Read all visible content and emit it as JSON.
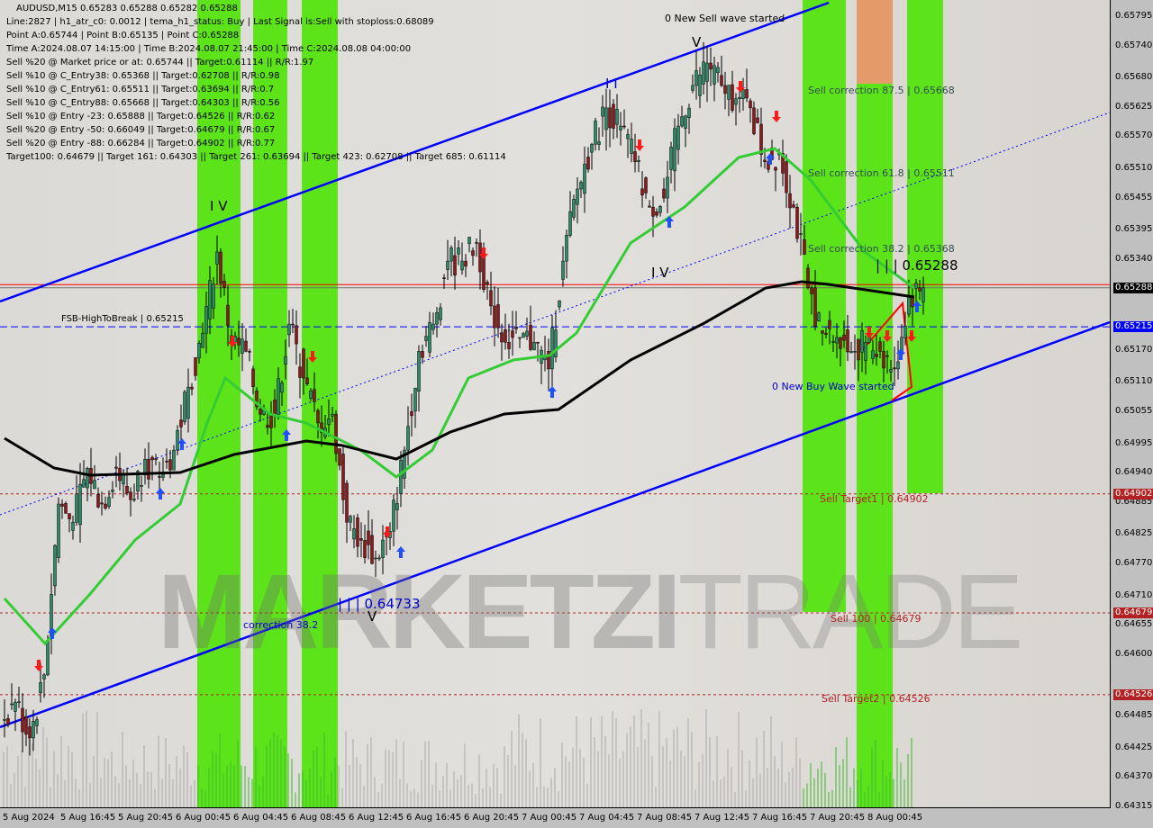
{
  "header": {
    "symbol_line": "AUDUSD,M15  0.65283 0.65288 0.65282 0.65288",
    "info_lines": [
      "Line:2827 | h1_atr_c0: 0.0012 | tema_h1_status: Buy | Last Signal is:Sell with stoploss:0.68089",
      "Point A:0.65744 | Point B:0.65135 | Point C:0.65288",
      "Time A:2024.08.07 14:15:00 | Time B:2024.08.07 21:45:00 | Time C:2024.08.08 04:00:00",
      "Sell %20 @ Market price or at: 0.65744 || Target:0.61114 || R/R:1.97",
      "Sell %10 @ C_Entry38: 0.65368 || Target:0.62708 || R/R:0.98",
      "Sell %10 @ C_Entry61: 0.65511 || Target:0.63694 || R/R:0.7",
      "Sell %10 @ C_Entry88: 0.65668 || Target:0.64303 || R/R:0.56",
      "Sell %10 @ Entry -23: 0.65888 || Target:0.64526 || R/R:0.62",
      "Sell %20 @ Entry -50: 0.66049 || Target:0.64679 || R/R:0.67",
      "Sell %20 @ Entry -88: 0.66284 || Target:0.64902 || R/R:0.77",
      "Target100: 0.64679 || Target 161: 0.64303 || Target 261: 0.63694 || Target 423: 0.62708 || Target 685: 0.61114"
    ]
  },
  "annotations": {
    "new_sell_wave": "0 New Sell wave started",
    "sell_corr_875": "Sell correction 87.5 | 0.65668",
    "sell_corr_618": "Sell correction 61.8 | 0.65511",
    "sell_corr_382": "Sell correction 38.2 | 0.65368",
    "point_c": "| | | 0.65288",
    "new_buy_wave": "0 New Buy Wave started",
    "sell_target1": "Sell Target1 | 0.64902",
    "sell_100": "Sell 100 | 0.64679",
    "sell_target2": "Sell Target2 | 0.64526",
    "low_label": "| | | 0.64733",
    "correction_382": "correction 38.2",
    "fsb": "FSB-HighToBreak | 0.65215",
    "wave_iv_1": "I V",
    "wave_v_1": "V",
    "wave_v_2": "V",
    "wave_iv_2": "I V",
    "wave_ii": "I I"
  },
  "watermark": {
    "bold": "MARKETZI",
    "thin": "TRADE"
  },
  "colors": {
    "bull": "#2e8b6a",
    "bear": "#8b1a1a",
    "channel": "#0000ff",
    "ma_long": "#000000",
    "ma_short": "#33cc33",
    "band": "#5de31a",
    "band_top": "#e59a6a",
    "target": "#b22222",
    "fsb": "#0000ff"
  },
  "chart_data": {
    "type": "candlestick",
    "symbol": "AUDUSD",
    "timeframe": "M15",
    "x_ticks": [
      "5 Aug 2024",
      "5 Aug 16:45",
      "5 Aug 20:45",
      "6 Aug 00:45",
      "6 Aug 04:45",
      "6 Aug 08:45",
      "6 Aug 12:45",
      "6 Aug 16:45",
      "6 Aug 20:45",
      "7 Aug 00:45",
      "7 Aug 04:45",
      "7 Aug 08:45",
      "7 Aug 12:45",
      "7 Aug 16:45",
      "7 Aug 20:45",
      "8 Aug 00:45"
    ],
    "y_ticks": [
      0.65795,
      0.6574,
      0.6568,
      0.65625,
      0.6557,
      0.6551,
      0.65455,
      0.65395,
      0.6534,
      0.6517,
      0.6511,
      0.65055,
      0.64995,
      0.6494,
      0.64885,
      0.64825,
      0.6477,
      0.6471,
      0.64655,
      0.646,
      0.64485,
      0.64425,
      0.6437,
      0.64315
    ],
    "ylim": [
      0.64315,
      0.65795
    ],
    "hourly_closes": [
      0.64478,
      0.64512,
      0.64445,
      0.64563,
      0.64883,
      0.64849,
      0.6495,
      0.64883,
      0.6495,
      0.64891,
      0.64967,
      0.64933,
      0.64984,
      0.65102,
      0.65203,
      0.65355,
      0.65186,
      0.65169,
      0.65051,
      0.65051,
      0.6522,
      0.65119,
      0.65035,
      0.65051,
      0.64849,
      0.64815,
      0.64782,
      0.64832,
      0.64984,
      0.65169,
      0.6522,
      0.65338,
      0.65338,
      0.65372,
      0.65254,
      0.65186,
      0.65195,
      0.65186,
      0.65136,
      0.65338,
      0.65473,
      0.65557,
      0.65625,
      0.65591,
      0.65524,
      0.65439,
      0.65456,
      0.65591,
      0.65667,
      0.65709,
      0.65667,
      0.65642,
      0.65625,
      0.65524,
      0.6554,
      0.65439,
      0.65288,
      0.65203,
      0.65195,
      0.65169,
      0.65186,
      0.65169,
      0.65136,
      0.65271,
      0.65288
    ],
    "levels": [
      {
        "price": 0.65288,
        "tag": "0.65288",
        "color": "#000000"
      },
      {
        "price": 0.65215,
        "tag": "0.65215",
        "color": "#0000ff"
      },
      {
        "price": 0.64902,
        "tag": "0.64902",
        "color": "#b22222"
      },
      {
        "price": 0.64679,
        "tag": "0.64679",
        "color": "#b22222"
      },
      {
        "price": 0.64526,
        "tag": "0.64526",
        "color": "#b22222"
      }
    ]
  }
}
